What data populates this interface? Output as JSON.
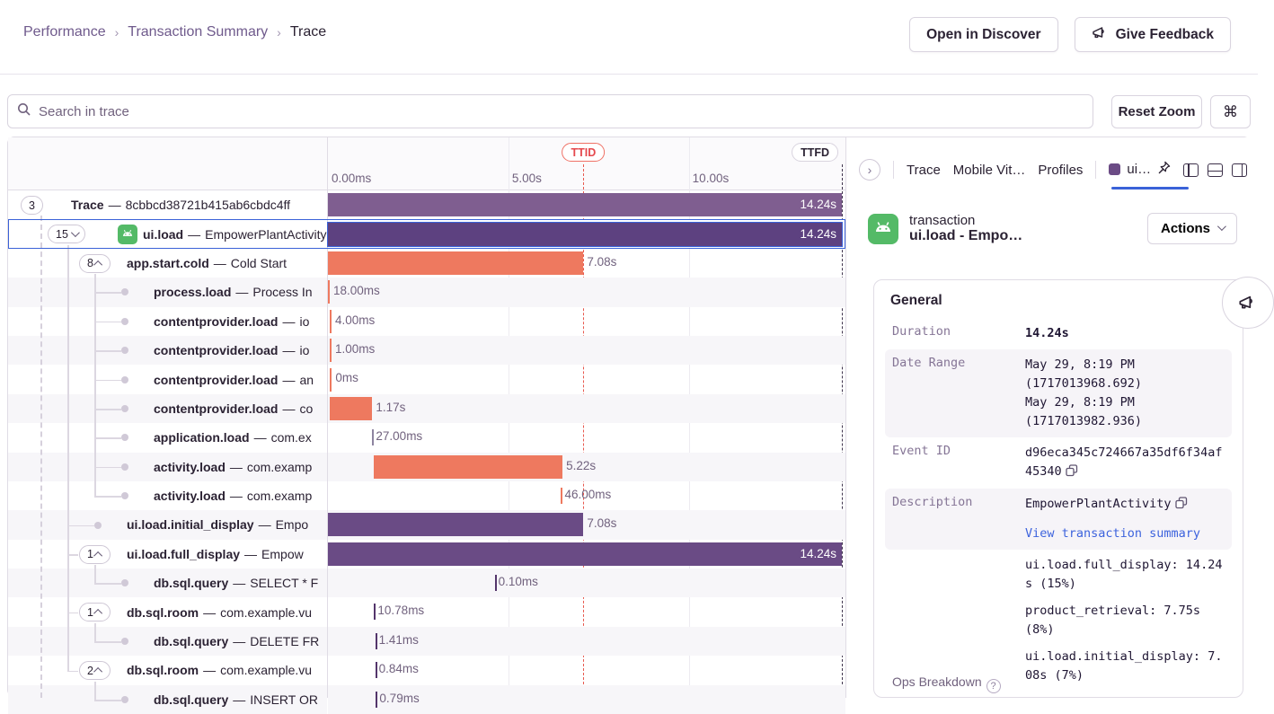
{
  "colors": {
    "purple_trace": "#7f5e90",
    "purple_selected": "#5d4180",
    "purple_ui": "#6a4b85",
    "orange": "#ee795f",
    "tick_purple": "#53356b",
    "tick_gray": "#8d84a0",
    "selection_blue": "#3a62d8",
    "ttid_red": "#e5484d",
    "link_blue": "#3d63dd",
    "android_green": "#54ba67"
  },
  "breadcrumb": {
    "items": [
      "Performance",
      "Transaction Summary",
      "Trace"
    ]
  },
  "header": {
    "open_in_discover": "Open in Discover",
    "give_feedback": "Give Feedback"
  },
  "toolbar": {
    "search_placeholder": "Search in trace",
    "reset_zoom": "Reset Zoom",
    "shortcut": "⌘"
  },
  "timeline": {
    "duration_s": 14.24,
    "axis_ticks": [
      {
        "label": "0.00ms",
        "s": 0
      },
      {
        "label": "5.00s",
        "s": 5
      },
      {
        "label": "10.00s",
        "s": 10
      }
    ],
    "markers": {
      "ttid": {
        "label": "TTID",
        "s": 7.08
      },
      "ttfd": {
        "label": "TTFD",
        "s": 14.24
      }
    }
  },
  "rows": [
    {
      "op": "Trace",
      "desc": "8cbbcd38721b415ab6cbdc4ff",
      "pill": "3",
      "depth": 0,
      "bar": {
        "s": 0,
        "d": 14.24,
        "c": "purple_trace",
        "label": "14.24s",
        "inside": true
      }
    },
    {
      "op": "ui.load",
      "desc": "EmpowerPlantActivity",
      "pill": "15",
      "chev": "down",
      "depth": 1,
      "icon": "android",
      "selected": true,
      "bar": {
        "s": 0,
        "d": 14.24,
        "c": "purple_selected",
        "label": "14.24s",
        "inside": true
      }
    },
    {
      "op": "app.start.cold",
      "desc": "Cold Start",
      "pill": "8",
      "chev": "up",
      "depth": 2,
      "bar": {
        "s": 0,
        "d": 7.08,
        "c": "orange",
        "label": "7.08s"
      }
    },
    {
      "op": "process.load",
      "desc": "Process In",
      "depth": 3,
      "dot": true,
      "bar": {
        "s": 0,
        "d": 0.018,
        "c": "orange",
        "label": "18.00ms"
      }
    },
    {
      "op": "contentprovider.load",
      "desc": "io",
      "depth": 3,
      "dot": true,
      "bar": {
        "s": 0.05,
        "d": 0.004,
        "c": "orange",
        "label": "4.00ms"
      }
    },
    {
      "op": "contentprovider.load",
      "desc": "io",
      "depth": 3,
      "dot": true,
      "bar": {
        "s": 0.05,
        "d": 0.001,
        "c": "orange",
        "label": "1.00ms"
      }
    },
    {
      "op": "contentprovider.load",
      "desc": "an",
      "depth": 3,
      "dot": true,
      "bar": {
        "s": 0.06,
        "d": 0.0005,
        "c": "orange",
        "label": "0ms"
      }
    },
    {
      "op": "contentprovider.load",
      "desc": "co",
      "depth": 3,
      "dot": true,
      "bar": {
        "s": 0.06,
        "d": 1.17,
        "c": "orange",
        "label": "1.17s"
      }
    },
    {
      "op": "application.load",
      "desc": "com.ex",
      "depth": 3,
      "dot": true,
      "tick": true,
      "bar": {
        "s": 1.23,
        "d": 0.027,
        "c": "tick_gray",
        "label": "27.00ms"
      }
    },
    {
      "op": "activity.load",
      "desc": "com.examp",
      "depth": 3,
      "dot": true,
      "bar": {
        "s": 1.28,
        "d": 5.22,
        "c": "orange",
        "label": "5.22s"
      }
    },
    {
      "op": "activity.load",
      "desc": "com.examp",
      "depth": 3,
      "dot": true,
      "tick": true,
      "bar": {
        "s": 6.46,
        "d": 0.046,
        "c": "orange",
        "label": "46.00ms"
      }
    },
    {
      "op": "ui.load.initial_display",
      "desc": "Empo",
      "depth": 2,
      "dot": true,
      "bar": {
        "s": 0,
        "d": 7.08,
        "c": "purple_ui",
        "label": "7.08s"
      }
    },
    {
      "op": "ui.load.full_display",
      "desc": "Empow",
      "pill": "1",
      "chev": "up",
      "depth": 2,
      "bar": {
        "s": 0,
        "d": 14.24,
        "c": "purple_ui",
        "label": "14.24s",
        "inside": true
      }
    },
    {
      "op": "db.sql.query",
      "desc": "SELECT * F",
      "depth": 3,
      "dot": true,
      "tick": true,
      "bar": {
        "s": 4.62,
        "d": 0.0001,
        "c": "tick_purple",
        "label": "0.10ms"
      }
    },
    {
      "op": "db.sql.room",
      "desc": "com.example.vu",
      "pill": "1",
      "chev": "up",
      "depth": 2,
      "tick": true,
      "bar": {
        "s": 1.28,
        "d": 0.0108,
        "c": "tick_purple",
        "label": "10.78ms"
      }
    },
    {
      "op": "db.sql.query",
      "desc": "DELETE FR",
      "depth": 3,
      "dot": true,
      "tick": true,
      "bar": {
        "s": 1.31,
        "d": 0.0014,
        "c": "tick_purple",
        "label": "1.41ms"
      }
    },
    {
      "op": "db.sql.room",
      "desc": "com.example.vu",
      "pill": "2",
      "chev": "up",
      "depth": 2,
      "tick": true,
      "bar": {
        "s": 1.31,
        "d": 0.0008,
        "c": "tick_purple",
        "label": "0.84ms"
      }
    },
    {
      "op": "db.sql.query",
      "desc": "INSERT OR",
      "depth": 3,
      "dot": true,
      "tick": true,
      "bar": {
        "s": 1.33,
        "d": 0.0008,
        "c": "tick_purple",
        "label": "0.79ms"
      }
    }
  ],
  "panel": {
    "tabs": [
      "Trace",
      "Mobile Vit…",
      "Profiles"
    ],
    "active_tab": "ui…",
    "transaction": {
      "type_label": "transaction",
      "title": "ui.load - Empo…",
      "actions_label": "Actions"
    },
    "general": {
      "title": "General",
      "rows": [
        {
          "label": "Duration",
          "lines": [
            "14.24s"
          ],
          "bold": true,
          "shade": false
        },
        {
          "label": "Date Range",
          "lines": [
            "May 29, 8:19 PM",
            "(1717013968.692)",
            "May 29, 8:19 PM",
            "(1717013982.936)"
          ],
          "shade": true
        },
        {
          "label": "Event ID",
          "lines": [
            "d96eca345c724667a35df6f34af45340"
          ],
          "copy": true,
          "shade": false
        },
        {
          "label": "Description",
          "lines": [
            "EmpowerPlantActivity"
          ],
          "copy": true,
          "link": "View transaction summary",
          "shade": true
        },
        {
          "label": "Ops Breakdown",
          "sans": true,
          "help": true,
          "shade": false,
          "ops": [
            "ui.load.full_display: 14.24s (15%)",
            "product_retrieval: 7.75s (8%)",
            "ui.load.initial_display: 7.08s (7%)"
          ]
        }
      ]
    }
  }
}
